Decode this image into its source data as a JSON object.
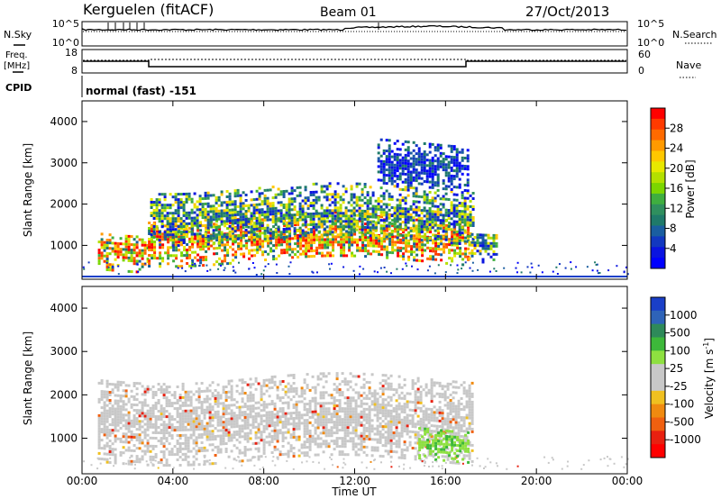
{
  "header": {
    "station": "Kerguelen (fitACF)",
    "beam": "Beam 01",
    "date": "27/Oct/2013"
  },
  "aux": {
    "nsky_label": "N.Sky",
    "nsearch_label": "N.Search",
    "freq_label_1": "Freq.",
    "freq_label_2": "[MHz]",
    "nave_label": "Nave",
    "cpid_label": "CPID",
    "cpid_value": "normal (fast) -151",
    "nsky_ticks": [
      "10^5",
      "10^0"
    ],
    "nsearch_ticks": [
      "10^5",
      "10^0"
    ],
    "freq_ticks": [
      "18",
      "8"
    ],
    "nave_ticks": [
      "60",
      "0"
    ]
  },
  "power_colorbar": {
    "label": "Power [dB]",
    "ticks": [
      "28",
      "24",
      "20",
      "16",
      "12",
      "8",
      "4"
    ],
    "colors": [
      "#ff0000",
      "#ff3a00",
      "#ff6a00",
      "#ff9a00",
      "#ffc800",
      "#e8e800",
      "#b4e000",
      "#7cd600",
      "#3fae3f",
      "#2f8f5e",
      "#1f7a6a",
      "#1a5ea0",
      "#1238c0",
      "#0a14e0",
      "#0000ff"
    ]
  },
  "velocity_colorbar": {
    "label": "Velocity [m s",
    "label_sup": "-1",
    "label_end": "]",
    "ticks": [
      "1000",
      "500",
      "100",
      "25",
      "-25",
      "-100",
      "-500",
      "-1000"
    ],
    "colors": [
      "#1a3fc8",
      "#2e63b8",
      "#2e8a5a",
      "#3db83a",
      "#8ee040",
      "#c8c8c8",
      "#c8c8c8",
      "#f0c020",
      "#f08a10",
      "#f06010",
      "#e82010",
      "#ff0000"
    ]
  },
  "chart_data": [
    {
      "type": "heatmap",
      "name": "power",
      "ylabel": "Slant Range [km]",
      "ylim": [
        180,
        4500
      ],
      "y_ticks": [
        1000,
        2000,
        3000,
        4000
      ],
      "xlim": [
        0,
        24
      ],
      "x_ticks": [
        "00:00",
        "04:00",
        "08:00",
        "12:00",
        "16:00",
        "20:00",
        "00:00"
      ],
      "bands": [
        {
          "t0": 0.7,
          "t1": 2.9,
          "r0": 450,
          "r1": 1350,
          "level": "high"
        },
        {
          "t0": 2.9,
          "t1": 17.0,
          "r0": 650,
          "r1": 1700,
          "level": "high"
        },
        {
          "t0": 3.0,
          "t1": 17.2,
          "r0": 1100,
          "r1": 2400,
          "level": "mid"
        },
        {
          "t0": 17.0,
          "t1": 18.2,
          "r0": 700,
          "r1": 1400,
          "level": "mid"
        },
        {
          "t0": 13.0,
          "t1": 17.0,
          "r0": 2400,
          "r1": 3500,
          "level": "low"
        }
      ]
    },
    {
      "type": "heatmap",
      "name": "velocity",
      "ylabel": "Slant Range [km]",
      "ylim": [
        180,
        4500
      ],
      "y_ticks": [
        1000,
        2000,
        3000,
        4000
      ],
      "xlim": [
        0,
        24
      ],
      "x_ticks": [
        "00:00",
        "04:00",
        "08:00",
        "12:00",
        "16:00",
        "20:00",
        "00:00"
      ],
      "xlabel": "Time UT",
      "bands": [
        {
          "t0": 0.7,
          "t1": 17.2,
          "r0": 500,
          "r1": 2400,
          "level": "ground"
        },
        {
          "t0": 14.8,
          "t1": 17.0,
          "r0": 550,
          "r1": 1250,
          "level": "positive"
        }
      ]
    }
  ]
}
